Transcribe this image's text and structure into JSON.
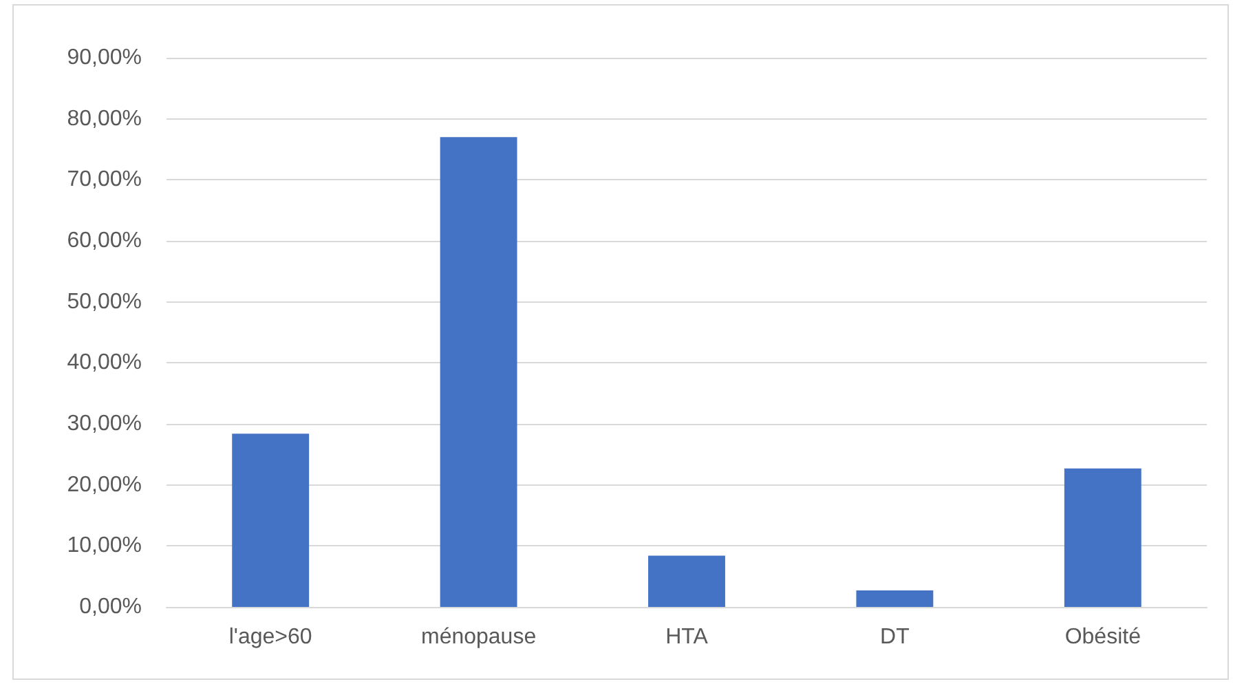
{
  "chart_data": {
    "type": "bar",
    "categories": [
      "l'age>60",
      "ménopause",
      "HTA",
      "DT",
      "Obésité"
    ],
    "values": [
      28.4,
      77.0,
      8.4,
      2.7,
      22.7
    ],
    "color": "#4472c4",
    "ylim": [
      0,
      90
    ],
    "yticks": [
      {
        "value": 0,
        "label": "0,00%"
      },
      {
        "value": 10,
        "label": "10,00%"
      },
      {
        "value": 20,
        "label": "20,00%"
      },
      {
        "value": 30,
        "label": "30,00%"
      },
      {
        "value": 40,
        "label": "40,00%"
      },
      {
        "value": 50,
        "label": "50,00%"
      },
      {
        "value": 60,
        "label": "60,00%"
      },
      {
        "value": 70,
        "label": "70,00%"
      },
      {
        "value": 80,
        "label": "80,00%"
      },
      {
        "value": 90,
        "label": "90,00%"
      }
    ],
    "grid": "y"
  }
}
